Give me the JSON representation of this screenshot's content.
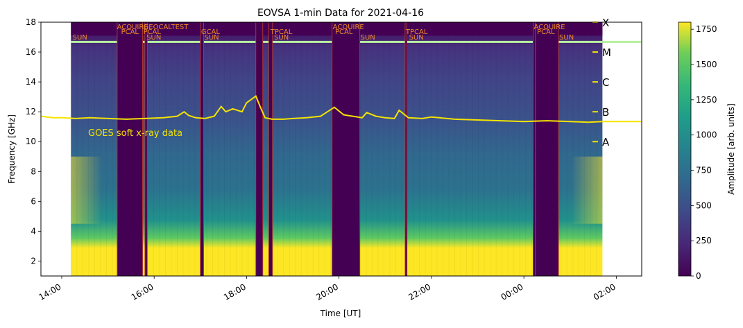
{
  "chart_data": {
    "type": "heatmap",
    "title": "EOVSA 1-min Data for 2021-04-16",
    "xlabel": "Time [UT]",
    "ylabel": "Frequency [GHz]",
    "colorbar_label": "Amplitude [arb. units]",
    "x_ticks": [
      "14:00",
      "16:00",
      "18:00",
      "20:00",
      "22:00",
      "00:00",
      "02:00"
    ],
    "x_tick_hours": [
      14,
      16,
      18,
      20,
      22,
      24,
      26
    ],
    "x_range_hours": [
      13.55,
      26.55
    ],
    "data_range_hours": [
      14.2,
      25.7
    ],
    "y_ticks": [
      2,
      4,
      6,
      8,
      10,
      12,
      14,
      16,
      18
    ],
    "ylim": [
      1,
      18
    ],
    "colorbar_ticks": [
      0,
      250,
      500,
      750,
      1000,
      1250,
      1500,
      1750
    ],
    "colorbar_range": [
      0,
      1800
    ],
    "colormap": "viridis",
    "calibration_gaps": [
      {
        "start": 15.2,
        "end": 15.75
      },
      {
        "start": 15.8,
        "end": 15.85
      },
      {
        "start": 17.0,
        "end": 17.07
      },
      {
        "start": 18.2,
        "end": 18.35
      },
      {
        "start": 18.48,
        "end": 18.56
      },
      {
        "start": 19.85,
        "end": 20.45
      },
      {
        "start": 21.43,
        "end": 21.47
      },
      {
        "start": 24.2,
        "end": 24.25
      },
      {
        "start": 24.25,
        "end": 24.75
      }
    ],
    "scan_labels": [
      {
        "text": "ACQUIRE",
        "t": 15.18,
        "row": 1
      },
      {
        "text": "PCAL",
        "t": 15.27,
        "row": 2
      },
      {
        "text": "SUN",
        "t": 14.22,
        "row": 3
      },
      {
        "text": "PCAL",
        "t": 15.75,
        "row": 2
      },
      {
        "text": "GEOCALTEST",
        "t": 15.75,
        "row": 1
      },
      {
        "text": "SUN",
        "t": 15.82,
        "row": 3
      },
      {
        "text": "GCAL",
        "t": 17.0,
        "row": 2
      },
      {
        "text": "SUN",
        "t": 17.07,
        "row": 3
      },
      {
        "text": "TPCAL",
        "t": 18.5,
        "row": 2
      },
      {
        "text": "SUN",
        "t": 18.58,
        "row": 3
      },
      {
        "text": "ACQUIRE",
        "t": 19.85,
        "row": 1
      },
      {
        "text": "PCAL",
        "t": 19.9,
        "row": 2
      },
      {
        "text": "SUN",
        "t": 20.45,
        "row": 3
      },
      {
        "text": "TPCAL",
        "t": 21.43,
        "row": 2
      },
      {
        "text": "SUN",
        "t": 21.5,
        "row": 3
      },
      {
        "text": "ACQUIRE",
        "t": 24.2,
        "row": 1
      },
      {
        "text": "PCAL",
        "t": 24.27,
        "row": 2
      },
      {
        "text": "SUN",
        "t": 24.75,
        "row": 3
      }
    ],
    "goes": {
      "label": "GOES soft x-ray data",
      "color": "#f5e400",
      "time": [
        13.55,
        13.8,
        14.0,
        14.3,
        14.6,
        15.0,
        15.4,
        15.8,
        16.2,
        16.5,
        16.65,
        16.75,
        16.9,
        17.1,
        17.3,
        17.45,
        17.55,
        17.7,
        17.9,
        18.0,
        18.2,
        18.3,
        18.4,
        18.55,
        18.8,
        19.0,
        19.3,
        19.6,
        19.7,
        19.9,
        20.1,
        20.5,
        20.6,
        20.8,
        21.0,
        21.2,
        21.3,
        21.5,
        21.8,
        22.0,
        22.5,
        23.0,
        23.5,
        24.0,
        24.5,
        25.0,
        25.4,
        25.7,
        26.0,
        26.55
      ],
      "level": [
        11.7,
        11.6,
        11.6,
        11.55,
        11.6,
        11.55,
        11.5,
        11.55,
        11.6,
        11.7,
        12.0,
        11.75,
        11.6,
        11.55,
        11.7,
        12.35,
        12.0,
        12.2,
        12.0,
        12.6,
        13.05,
        12.3,
        11.6,
        11.5,
        11.5,
        11.55,
        11.6,
        11.7,
        11.9,
        12.3,
        11.8,
        11.6,
        11.95,
        11.7,
        11.6,
        11.55,
        12.1,
        11.6,
        11.55,
        11.65,
        11.5,
        11.45,
        11.4,
        11.35,
        11.4,
        11.35,
        11.3,
        11.35,
        11.35,
        11.35
      ]
    },
    "goes_classes": [
      {
        "label": "A",
        "y": 10
      },
      {
        "label": "B",
        "y": 12
      },
      {
        "label": "C",
        "y": 14
      },
      {
        "label": "M",
        "y": 16
      },
      {
        "label": "X",
        "y": 18
      }
    ]
  }
}
